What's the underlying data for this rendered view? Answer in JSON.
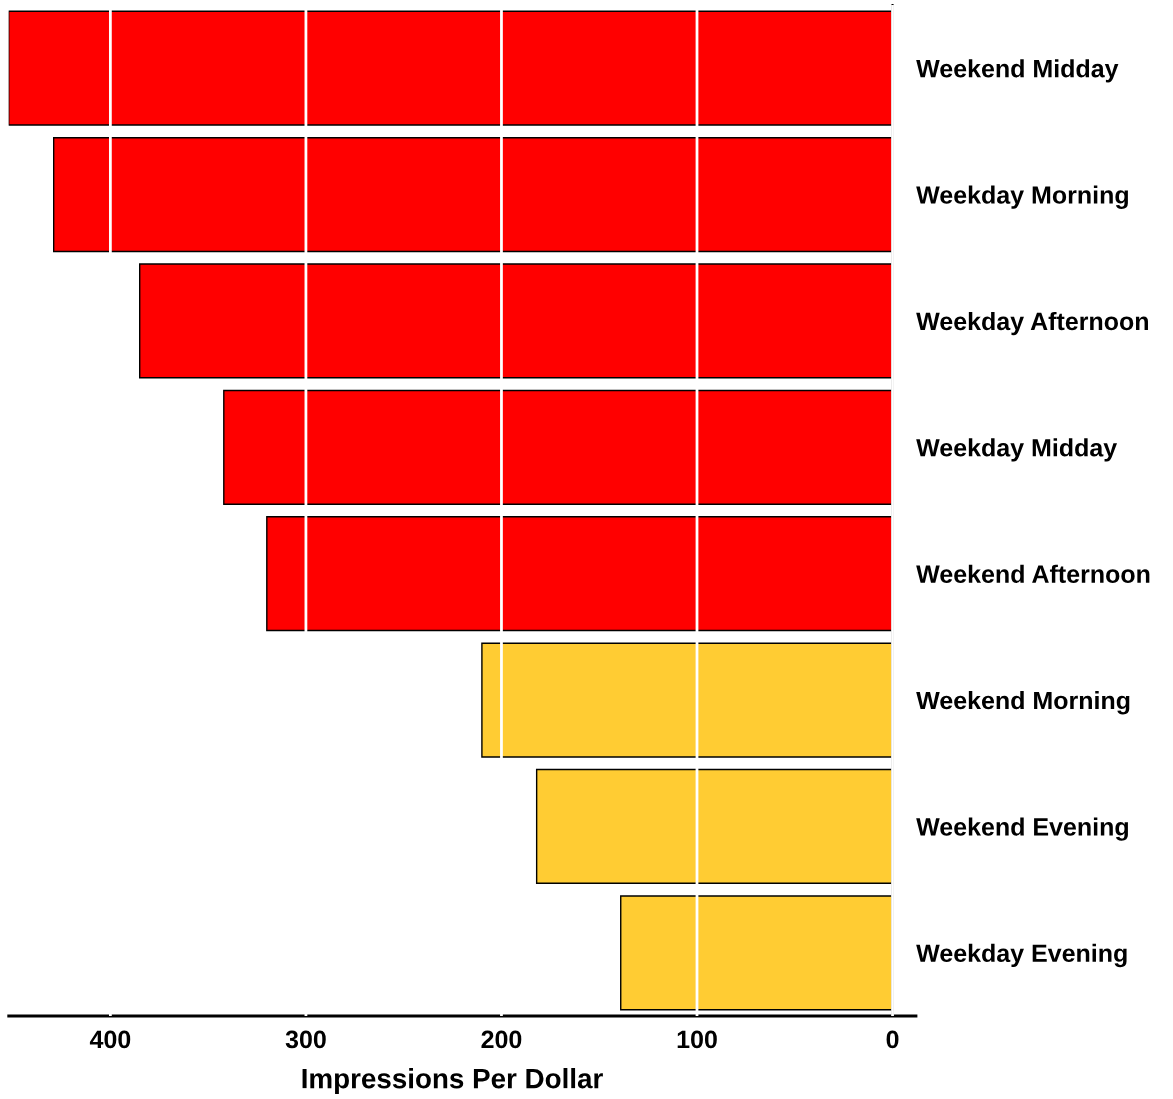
{
  "chart_data": {
    "type": "bar",
    "orientation": "horizontal",
    "categories": [
      "Weekend Midday",
      "Weekday Morning",
      "Weekday Afternoon",
      "Weekday Midday",
      "Weekend Afternoon",
      "Weekend Morning",
      "Weekend Evening",
      "Weekday Evening"
    ],
    "values": [
      452,
      429,
      385,
      342,
      320,
      210,
      182,
      139
    ],
    "colors": [
      "#ff0000",
      "#ff0000",
      "#ff0000",
      "#ff0000",
      "#ff0000",
      "#ffcc33",
      "#ffcc33",
      "#ffcc33"
    ],
    "xlabel": "Impressions Per Dollar",
    "xlim": [
      452,
      -12
    ],
    "xticks": [
      0,
      100,
      200,
      300,
      400
    ],
    "grid": "x"
  }
}
